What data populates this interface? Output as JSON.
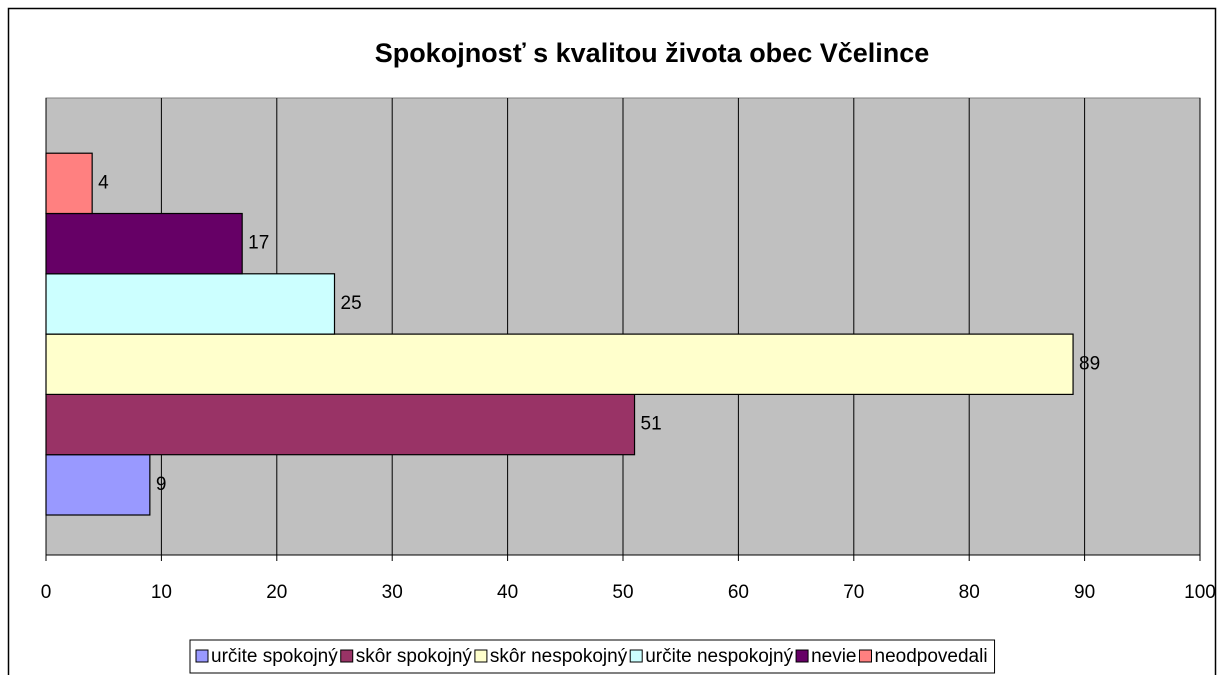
{
  "chart_data": {
    "type": "bar",
    "orientation": "horizontal",
    "title": "Spokojnosť s kvalitou života  obec Včelince",
    "categories": [
      null
    ],
    "series": [
      {
        "name": "určite spokojný",
        "color": "#9999ff",
        "values": [
          9
        ]
      },
      {
        "name": "skôr spokojný",
        "color": "#993366",
        "values": [
          51
        ]
      },
      {
        "name": "skôr nespokojný",
        "color": "#ffffcc",
        "values": [
          89
        ]
      },
      {
        "name": "určite nespokojný",
        "color": "#ccffff",
        "values": [
          25
        ]
      },
      {
        "name": "nevie",
        "color": "#660066",
        "values": [
          17
        ]
      },
      {
        "name": "neodpovedali",
        "color": "#ff8080",
        "values": [
          4
        ]
      }
    ],
    "xlim": [
      0,
      100
    ],
    "xticks": [
      0,
      10,
      20,
      30,
      40,
      50,
      60,
      70,
      80,
      90,
      100
    ],
    "grid": true,
    "legend": "bottom",
    "plot_background": "#c0c0c0"
  }
}
